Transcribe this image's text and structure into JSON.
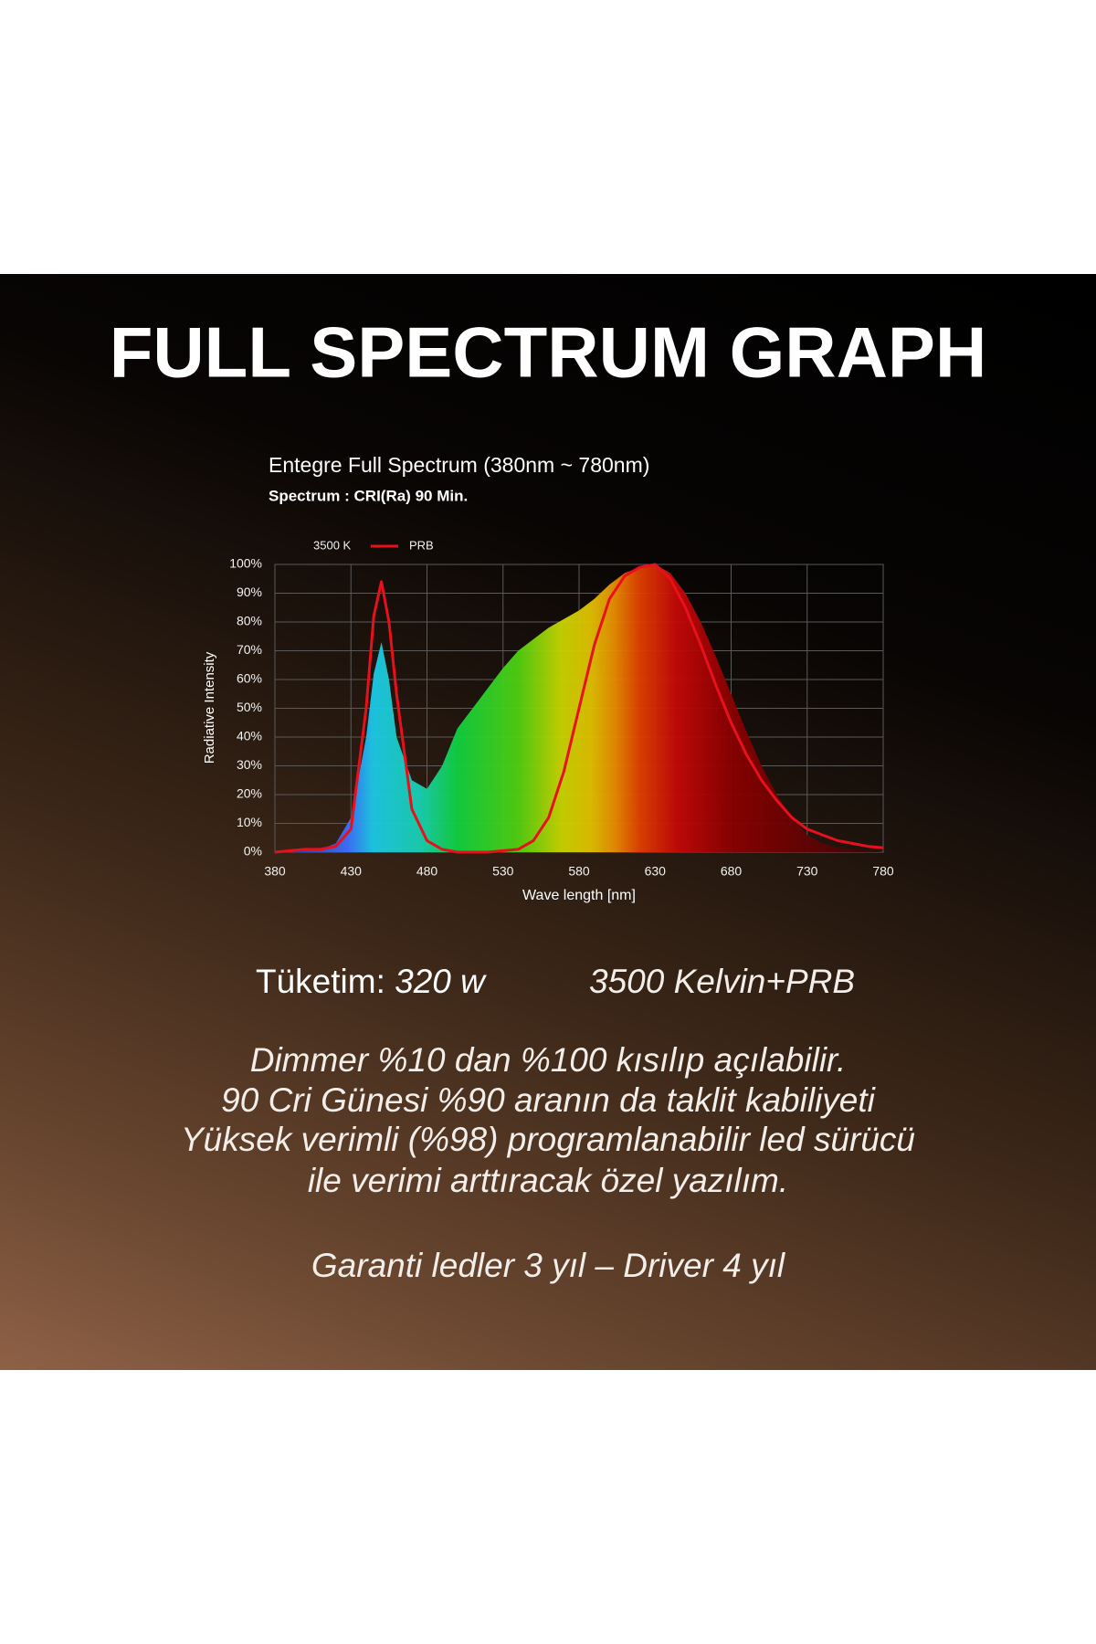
{
  "header": {
    "title": "FULL SPECTRUM GRAPH"
  },
  "chart_data": {
    "type": "area",
    "title": "Entegre Full Spectrum (380nm ~ 780nm)",
    "subtitle": "Spectrum : CRI(Ra) 90 Min.",
    "x_label": "Wave length [nm]",
    "y_label": "Radiative Intensity",
    "x": [
      380,
      390,
      400,
      410,
      420,
      430,
      440,
      445,
      450,
      455,
      460,
      470,
      480,
      490,
      500,
      510,
      520,
      530,
      540,
      550,
      560,
      570,
      580,
      590,
      600,
      610,
      620,
      630,
      640,
      650,
      660,
      670,
      680,
      690,
      700,
      710,
      720,
      730,
      740,
      750,
      760,
      770,
      780
    ],
    "series": [
      {
        "name": "3500 K",
        "values": [
          0,
          0,
          0.5,
          1,
          3,
          12,
          40,
          62,
          73,
          60,
          40,
          25,
          22,
          30,
          43,
          50,
          57,
          64,
          70,
          74,
          78,
          81,
          84,
          88,
          93,
          97,
          99,
          100,
          97,
          90,
          80,
          68,
          55,
          42,
          30,
          20,
          12,
          6,
          3,
          1.5,
          1,
          0.5,
          0
        ]
      },
      {
        "name": "PRB",
        "type": "line",
        "color": "#e8101a",
        "values": [
          0,
          0.5,
          1,
          1,
          2,
          8,
          50,
          82,
          94,
          80,
          55,
          15,
          4,
          1,
          0,
          0,
          0,
          0.5,
          1,
          4,
          12,
          28,
          50,
          72,
          88,
          96,
          99,
          100,
          95,
          85,
          72,
          58,
          45,
          34,
          25,
          18,
          12,
          8,
          6,
          4,
          3,
          2,
          1.5
        ]
      }
    ],
    "xlim": [
      380,
      780
    ],
    "ylim": [
      0,
      100
    ],
    "xticks": [
      380,
      430,
      480,
      530,
      580,
      630,
      680,
      730,
      780
    ],
    "yticks": [
      {
        "value": 0,
        "label": "0%"
      },
      {
        "value": 10,
        "label": "10%"
      },
      {
        "value": 20,
        "label": "20%"
      },
      {
        "value": 30,
        "label": "30%"
      },
      {
        "value": 40,
        "label": "40%"
      },
      {
        "value": 50,
        "label": "50%"
      },
      {
        "value": 60,
        "label": "60%"
      },
      {
        "value": 70,
        "label": "70%"
      },
      {
        "value": 80,
        "label": "80%"
      },
      {
        "value": 90,
        "label": "90%"
      },
      {
        "value": 100,
        "label": "100%"
      }
    ],
    "grid": true
  },
  "specs": {
    "power_label": "Tüketim:",
    "power": "320 w",
    "mode": "3500 Kelvin+PRB",
    "lines": [
      "Dimmer %10 dan %100 kısılıp açılabilir.",
      "90 Cri Günesi %90 aranın da taklit kabiliyeti",
      "Yüksek verimli (%98) programlanabilir led sürücü",
      "ile verimi arttıracak özel yazılım."
    ],
    "warranty": "Garanti ledler 3 yıl – Driver 4 yıl"
  }
}
